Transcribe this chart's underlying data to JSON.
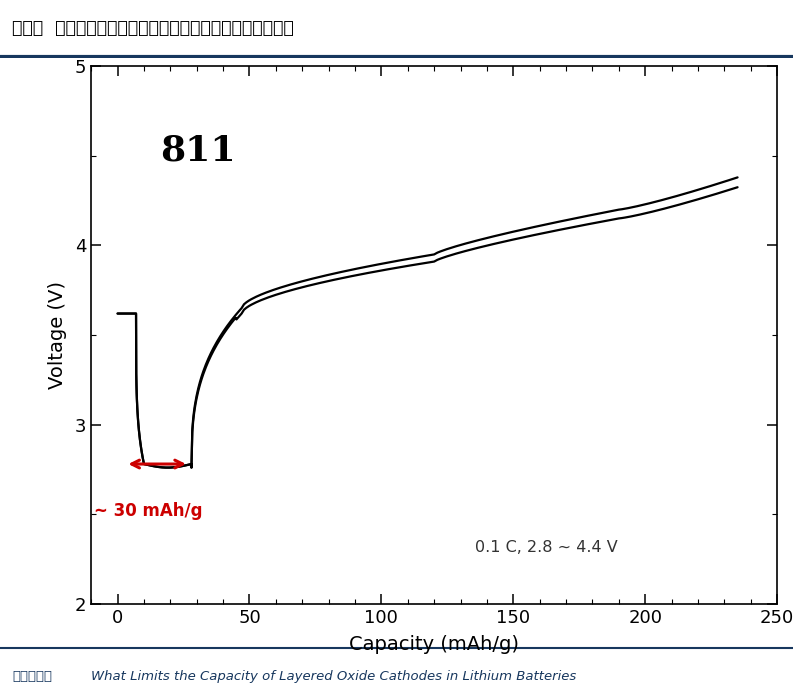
{
  "title": "图表：  室温下高镍三元正极材料第一次循环的容量变化情况",
  "title_color": "#000000",
  "source_label": "资料来源：",
  "source_italic": "What Limits the Capacity of Layered Oxide Cathodes in Lithium Batteries",
  "label_811": "811",
  "xlabel": "Capacity (mAh/g)",
  "ylabel": "Voltage (V)",
  "annotation_30": "~ 30 mAh/g",
  "annotation_cond": "0.1 C, 2.8 ~ 4.4 V",
  "xlim": [
    -10,
    250
  ],
  "ylim": [
    2.0,
    5.0
  ],
  "xticks": [
    0,
    50,
    100,
    150,
    200,
    250
  ],
  "yticks": [
    2,
    3,
    4,
    5
  ],
  "background_color": "#ffffff",
  "plot_bg_color": "#ffffff",
  "line_color": "#000000",
  "arrow_color": "#cc0000",
  "header_bg_color": "#c5d9f1",
  "header_line_color": "#17375e",
  "footer_line_color": "#17375e",
  "footer_text_color": "#17375e"
}
